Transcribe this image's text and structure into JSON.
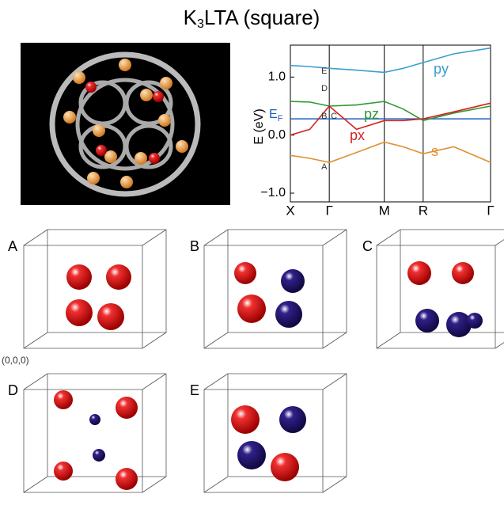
{
  "title": {
    "main": "K",
    "sub": "3",
    "rest": "LTA (square)"
  },
  "chart_data": {
    "type": "line",
    "ylabel": "E (eV)",
    "x": [
      0,
      0.25,
      0.5,
      0.85,
      1.207,
      1.45,
      1.707,
      2.1,
      2.573
    ],
    "xlim": [
      0,
      2.573
    ],
    "xticks": [
      {
        "value": 0,
        "label": "X"
      },
      {
        "value": 0.5,
        "label": "Γ"
      },
      {
        "value": 1.207,
        "label": "M"
      },
      {
        "value": 1.707,
        "label": "R"
      },
      {
        "value": 2.573,
        "label": "Γ"
      }
    ],
    "ylim": [
      -1.15,
      1.55
    ],
    "yticks": [
      {
        "value": -1,
        "label": "−1.0"
      },
      {
        "value": 0,
        "label": "0.0"
      },
      {
        "value": 1,
        "label": "1.0"
      }
    ],
    "fermi_level": 0.28,
    "fermi_label": {
      "main": "E",
      "sub": "F"
    },
    "series": [
      {
        "name": "py",
        "color": "#3a9fd0",
        "values": [
          1.2,
          1.18,
          1.15,
          1.12,
          1.08,
          1.15,
          1.25,
          1.4,
          1.5
        ]
      },
      {
        "name": "pz",
        "color": "#2e9a2e",
        "values": [
          0.58,
          0.57,
          0.5,
          0.52,
          0.58,
          0.45,
          0.25,
          0.38,
          0.5
        ]
      },
      {
        "name": "px",
        "color": "#d42020",
        "values": [
          0.0,
          0.1,
          0.5,
          0.1,
          0.25,
          0.25,
          0.28,
          0.4,
          0.55
        ]
      },
      {
        "name": "s",
        "color": "#e09030",
        "values": [
          -0.35,
          -0.4,
          -0.47,
          -0.3,
          -0.12,
          -0.2,
          -0.32,
          -0.2,
          -0.47
        ]
      }
    ],
    "points": [
      {
        "label": "A",
        "x": 0.5,
        "y": -0.55
      },
      {
        "label": "B",
        "x": 0.5,
        "y": 0.32
      },
      {
        "label": "C",
        "x": 0.5,
        "y": 0.32
      },
      {
        "label": "D",
        "x": 0.5,
        "y": 0.8
      },
      {
        "label": "E",
        "x": 0.5,
        "y": 1.1
      }
    ]
  },
  "panels": [
    "A",
    "B",
    "C",
    "D",
    "E"
  ],
  "origin_label": "(0,0,0)"
}
